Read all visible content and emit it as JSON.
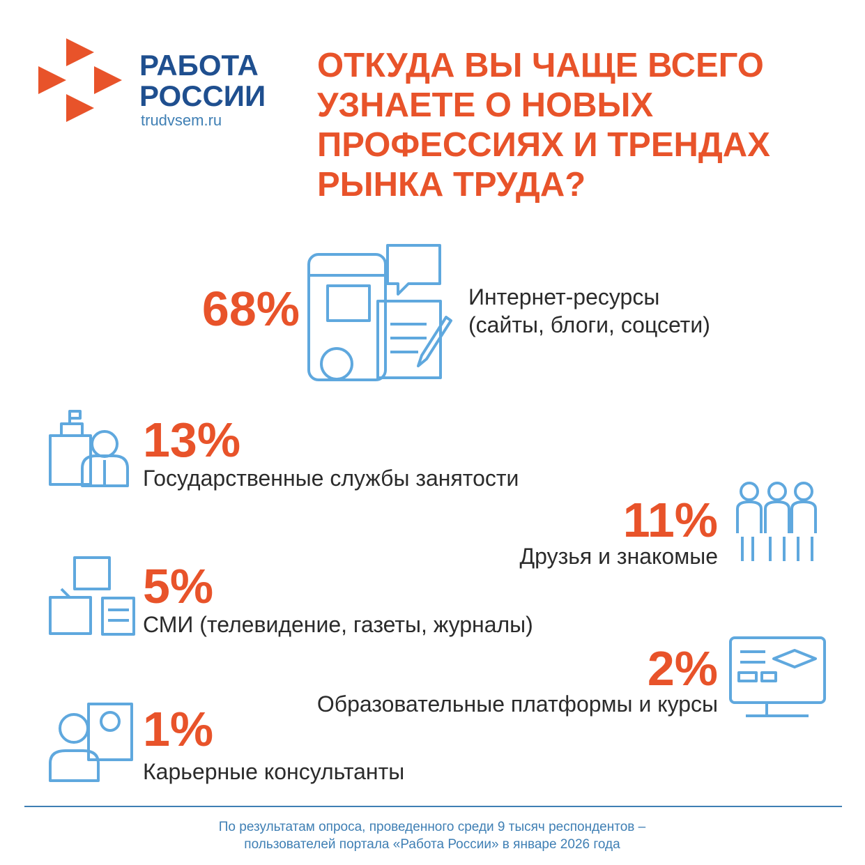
{
  "logo": {
    "name_lines": [
      "РАБОТА",
      "РОССИИ"
    ],
    "url": "trudvsem.ru"
  },
  "title_lines": [
    "ОТКУДА ВЫ ЧАЩЕ ВСЕГО",
    "УЗНАЕТЕ О НОВЫХ",
    "ПРОФЕССИЯХ И ТРЕНДАХ",
    "РЫНКА ТРУДА?"
  ],
  "items": [
    {
      "percent": "68%",
      "label_lines": [
        "Интернет-ресурсы",
        "(сайты, блоги, соцсети)"
      ]
    },
    {
      "percent": "13%",
      "label_lines": [
        "Государственные службы занятости"
      ]
    },
    {
      "percent": "11%",
      "label_lines": [
        "Друзья и знакомые"
      ]
    },
    {
      "percent": "5%",
      "label_lines": [
        "СМИ (телевидение, газеты, журналы)"
      ]
    },
    {
      "percent": "2%",
      "label_lines": [
        "Образовательные платформы и курсы"
      ]
    },
    {
      "percent": "1%",
      "label_lines": [
        "Карьерные консультанты"
      ]
    }
  ],
  "footnote_lines": [
    "По результатам опроса, проведенного среди 9 тысяч респондентов –",
    "пользователей портала «Работа России» в январе 2026 года"
  ]
}
